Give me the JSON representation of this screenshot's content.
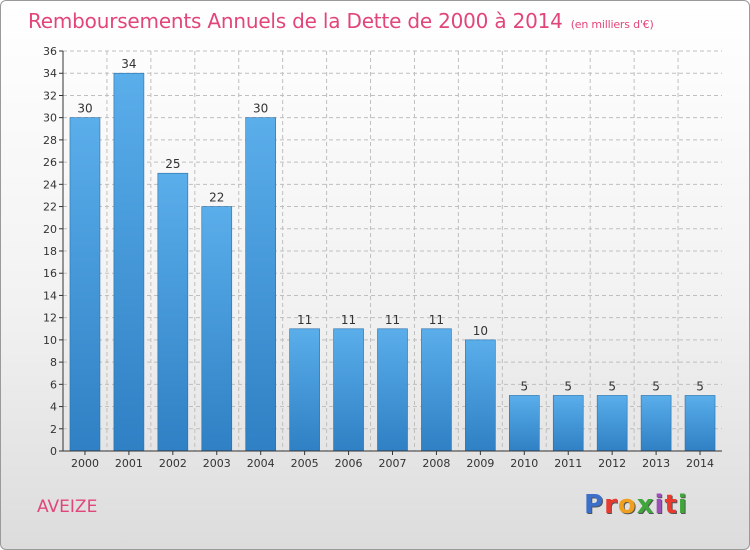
{
  "title": "Remboursements Annuels de la Dette de 2000 à 2014",
  "unit": "(en milliers d'€)",
  "commune": "AVEIZE",
  "logo": {
    "text": "Proxiti",
    "colors": [
      "#3b6fc9",
      "#e83a2f",
      "#f0a020",
      "#3fa63a",
      "#9b4fb7",
      "#e83a2f",
      "#3fa63a"
    ]
  },
  "chart_data": {
    "type": "bar",
    "categories": [
      "2000",
      "2001",
      "2002",
      "2003",
      "2004",
      "2005",
      "2006",
      "2007",
      "2008",
      "2009",
      "2010",
      "2011",
      "2012",
      "2013",
      "2014"
    ],
    "values": [
      30,
      34,
      25,
      22,
      30,
      11,
      11,
      11,
      11,
      10,
      5,
      5,
      5,
      5,
      5
    ],
    "ylim": [
      0,
      36
    ],
    "yticks": [
      0,
      2,
      4,
      6,
      8,
      10,
      12,
      14,
      16,
      18,
      20,
      22,
      24,
      26,
      28,
      30,
      32,
      34,
      36
    ],
    "grid": true,
    "colors": {
      "bar_top": "#5aaeea",
      "bar_bottom": "#2f80c4",
      "bar_edge": "#2a6fa8",
      "grid": "#bfbfbf",
      "axis": "#333333"
    }
  }
}
